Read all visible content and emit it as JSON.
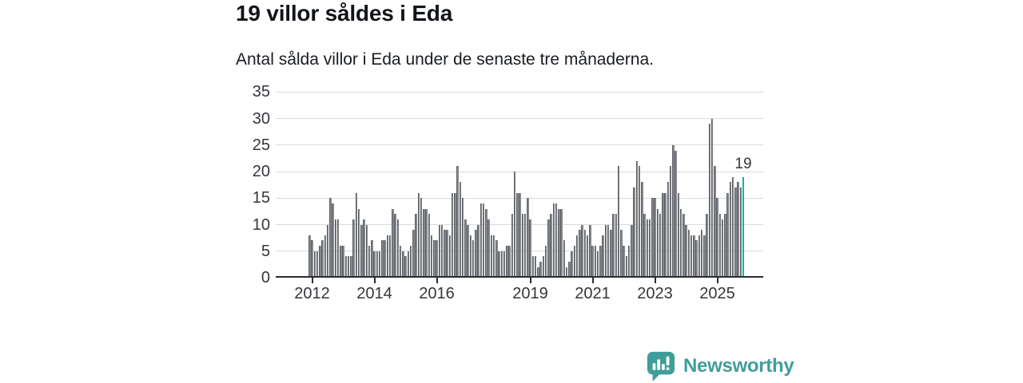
{
  "header": {
    "title": "19 villor såldes i Eda",
    "subtitle": "Antal sålda villor i Eda under de senaste tre månaderna."
  },
  "annotation": {
    "label": "19"
  },
  "logo": {
    "text": "Newsworthy",
    "color": "#3f9e99",
    "icon": "newsworthy-speech-bubble-chart-icon"
  },
  "chart_data": {
    "type": "bar",
    "title": "19 villor såldes i Eda",
    "subtitle": "Antal sålda villor i Eda under de senaste tre månaderna.",
    "xlabel": "",
    "ylabel": "",
    "ylim": [
      0,
      35
    ],
    "grid": true,
    "yticks": [
      0,
      5,
      10,
      15,
      20,
      25,
      30,
      35
    ],
    "xticks": [
      {
        "label": "2012",
        "month_index": 1
      },
      {
        "label": "2014",
        "month_index": 25
      },
      {
        "label": "2016",
        "month_index": 49
      },
      {
        "label": "2019",
        "month_index": 85
      },
      {
        "label": "2021",
        "month_index": 109
      },
      {
        "label": "2023",
        "month_index": 133
      },
      {
        "label": "2025",
        "month_index": 157
      }
    ],
    "start_month": "2011-12",
    "end_month": "2025-11",
    "last_value_label": "19",
    "values": [
      8,
      7,
      5,
      5,
      6,
      7,
      8,
      10,
      15,
      14,
      11,
      11,
      6,
      6,
      4,
      4,
      4,
      11,
      16,
      13,
      10,
      11,
      10,
      6,
      7,
      5,
      5,
      5,
      7,
      7,
      8,
      8,
      13,
      12,
      11,
      6,
      5,
      4,
      5,
      6,
      9,
      12,
      16,
      15,
      13,
      13,
      12,
      8,
      7,
      7,
      10,
      10,
      9,
      9,
      8,
      16,
      16,
      21,
      18,
      15,
      11,
      10,
      8,
      7,
      9,
      10,
      14,
      14,
      13,
      11,
      8,
      8,
      7,
      5,
      5,
      5,
      6,
      6,
      12,
      20,
      16,
      16,
      12,
      12,
      15,
      11,
      4,
      4,
      2,
      3,
      4,
      6,
      11,
      12,
      14,
      14,
      13,
      13,
      7,
      2,
      3,
      5,
      6,
      8,
      9,
      10,
      9,
      8,
      10,
      6,
      6,
      5,
      6,
      8,
      10,
      10,
      9,
      12,
      12,
      21,
      9,
      6,
      4,
      6,
      10,
      17,
      22,
      21,
      18,
      12,
      11,
      11,
      15,
      15,
      13,
      12,
      16,
      16,
      18,
      21,
      25,
      24,
      16,
      13,
      12,
      10,
      9,
      8,
      8,
      7,
      8,
      9,
      8,
      12,
      29,
      30,
      21,
      15,
      12,
      11,
      12,
      16,
      18,
      19,
      17,
      18,
      17,
      19
    ],
    "colors": {
      "bar": "#84878b",
      "bar_border": "#5a5d61",
      "highlight": "#14b1aa",
      "grid": "#dadada",
      "axis": "#2b2d30"
    }
  }
}
